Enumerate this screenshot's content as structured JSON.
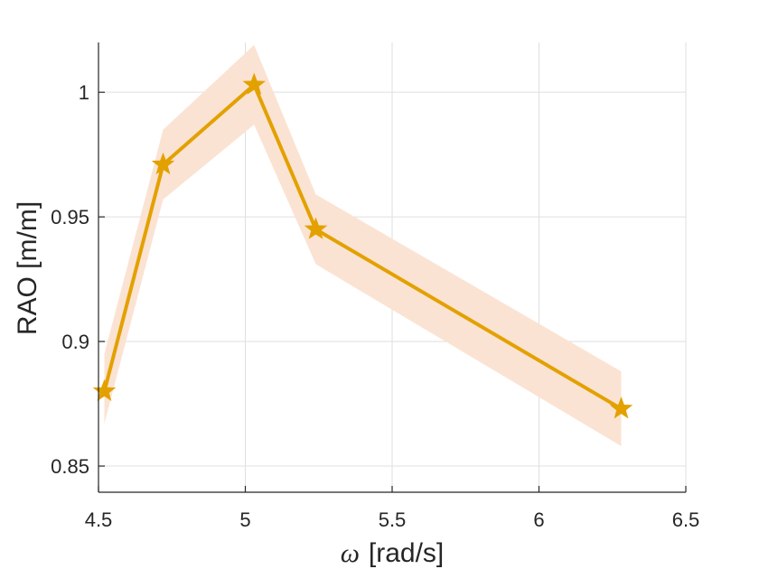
{
  "chart_data": {
    "type": "line",
    "xlabel_symbol": "ω",
    "xlabel_text": "[rad/s]",
    "ylabel": "RAO [m/m]",
    "xlim": [
      4.5,
      6.5
    ],
    "ylim": [
      0.8395,
      1.02
    ],
    "xticks": [
      4.5,
      5,
      5.5,
      6,
      6.5
    ],
    "xtick_labels": [
      "4.5",
      "5",
      "5.5",
      "6",
      "6.5"
    ],
    "yticks": [
      0.85,
      0.9,
      0.95,
      1
    ],
    "ytick_labels": [
      "0.85",
      "0.9",
      "0.95",
      "1"
    ],
    "grid": true,
    "marker": "pentagram",
    "series": [
      {
        "x": [
          4.52,
          4.72,
          5.03,
          5.24,
          6.28
        ],
        "y": [
          0.88,
          0.971,
          1.003,
          0.945,
          0.873
        ],
        "band_lower": [
          0.867,
          0.957,
          0.987,
          0.931,
          0.858
        ],
        "band_upper": [
          0.895,
          0.985,
          1.019,
          0.959,
          0.888
        ]
      }
    ],
    "colors": {
      "line": "#E3A100",
      "band": "#FBE3D3",
      "grid": "#DFDFDF",
      "axis": "#262626"
    }
  }
}
